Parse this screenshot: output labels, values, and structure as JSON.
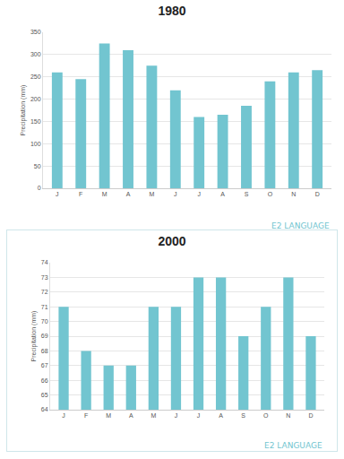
{
  "chart_data": [
    {
      "type": "bar",
      "title": "1980",
      "y_label": "Precipitation (mm)",
      "categories": [
        "J",
        "F",
        "M",
        "A",
        "M",
        "J",
        "J",
        "A",
        "S",
        "O",
        "N",
        "D"
      ],
      "values": [
        260,
        245,
        325,
        310,
        275,
        220,
        160,
        165,
        185,
        240,
        260,
        265
      ],
      "color": "#72c5d0",
      "ylim": [
        0,
        350
      ],
      "yticks": [
        0,
        50,
        100,
        150,
        200,
        250,
        300,
        350
      ],
      "grid": true,
      "annotations": [
        {
          "text": "E2 LANGUAGE"
        }
      ]
    },
    {
      "type": "bar",
      "title": "2000",
      "y_label": "Precipitation (mm)",
      "categories": [
        "J",
        "F",
        "M",
        "A",
        "M",
        "J",
        "J",
        "A",
        "S",
        "O",
        "N",
        "D"
      ],
      "values": [
        71,
        68,
        67,
        67,
        71,
        71,
        73,
        73,
        69,
        71,
        73,
        69
      ],
      "color": "#72c5d0",
      "ylim": [
        64,
        74
      ],
      "yticks": [
        64,
        65,
        66,
        67,
        68,
        69,
        70,
        71,
        72,
        73,
        74
      ],
      "grid": true,
      "annotations": [
        {
          "text": "E2 LANGUAGE"
        }
      ]
    }
  ]
}
